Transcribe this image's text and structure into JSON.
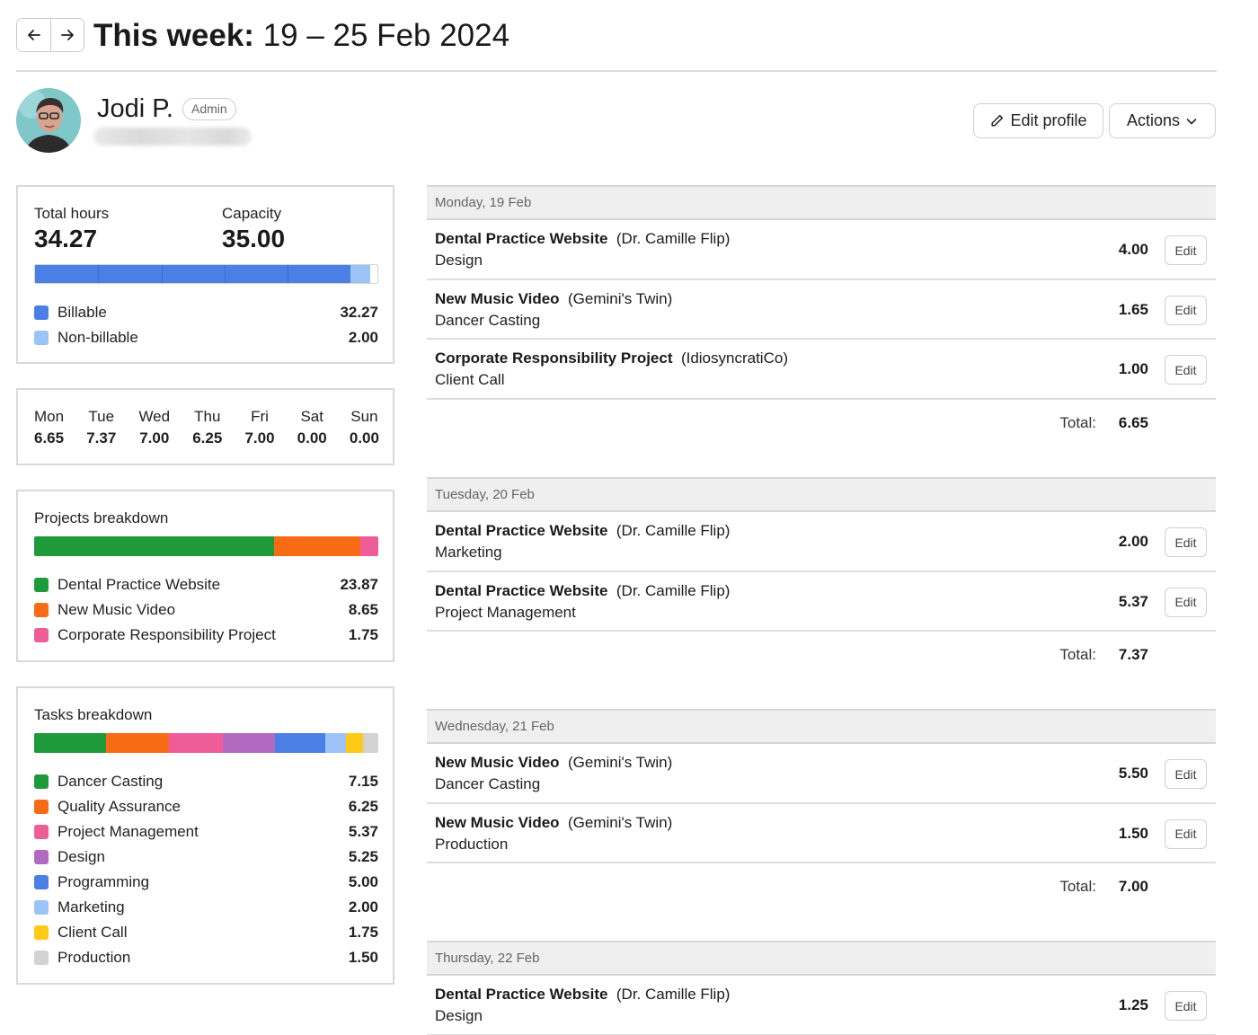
{
  "header": {
    "title_prefix": "This week:",
    "title_range": "19 – 25 Feb 2024",
    "prev_icon": "arrow-left-icon",
    "next_icon": "arrow-right-icon"
  },
  "user": {
    "name": "Jodi P.",
    "role": "Admin",
    "edit_profile_label": "Edit profile",
    "actions_label": "Actions"
  },
  "summary": {
    "total_hours_label": "Total hours",
    "total_hours": "34.27",
    "capacity_label": "Capacity",
    "capacity": "35.00",
    "billable_label": "Billable",
    "billable_value": "32.27",
    "billable_fraction": 0.922,
    "nonbillable_label": "Non-billable",
    "nonbillable_value": "2.00",
    "nonbillable_fraction": 0.057,
    "colors": {
      "billable": "#4a7fe6",
      "nonbillable": "#9cc3f6"
    }
  },
  "days": [
    {
      "name": "Mon",
      "value": "6.65"
    },
    {
      "name": "Tue",
      "value": "7.37"
    },
    {
      "name": "Wed",
      "value": "7.00"
    },
    {
      "name": "Thu",
      "value": "6.25"
    },
    {
      "name": "Fri",
      "value": "7.00"
    },
    {
      "name": "Sat",
      "value": "0.00"
    },
    {
      "name": "Sun",
      "value": "0.00"
    }
  ],
  "projects": {
    "title": "Projects breakdown",
    "items": [
      {
        "label": "Dental Practice Website",
        "value": "23.87",
        "color": "#1e9a3a"
      },
      {
        "label": "New Music Video",
        "value": "8.65",
        "color": "#f76b15"
      },
      {
        "label": "Corporate Responsibility Project",
        "value": "1.75",
        "color": "#ee5d98"
      }
    ]
  },
  "tasks": {
    "title": "Tasks breakdown",
    "items": [
      {
        "label": "Dancer Casting",
        "value": "7.15",
        "color": "#1e9a3a"
      },
      {
        "label": "Quality Assurance",
        "value": "6.25",
        "color": "#f76b15"
      },
      {
        "label": "Project Management",
        "value": "5.37",
        "color": "#ee5d98"
      },
      {
        "label": "Design",
        "value": "5.25",
        "color": "#b06bc0"
      },
      {
        "label": "Programming",
        "value": "5.00",
        "color": "#4a7fe6"
      },
      {
        "label": "Marketing",
        "value": "2.00",
        "color": "#9cc3f6"
      },
      {
        "label": "Client Call",
        "value": "1.75",
        "color": "#ffc917"
      },
      {
        "label": "Production",
        "value": "1.50",
        "color": "#d2d2d2"
      }
    ]
  },
  "timeline": {
    "total_label": "Total:",
    "edit_label": "Edit",
    "days": [
      {
        "header": "Monday, 19 Feb",
        "total": "6.65",
        "entries": [
          {
            "project": "Dental Practice Website",
            "client": "(Dr. Camille Flip)",
            "task": "Design",
            "hours": "4.00"
          },
          {
            "project": "New Music Video",
            "client": "(Gemini's Twin)",
            "task": "Dancer Casting",
            "hours": "1.65"
          },
          {
            "project": "Corporate Responsibility Project",
            "client": "(IdiosyncratiCo)",
            "task": "Client Call",
            "hours": "1.00"
          }
        ]
      },
      {
        "header": "Tuesday, 20 Feb",
        "total": "7.37",
        "entries": [
          {
            "project": "Dental Practice Website",
            "client": "(Dr. Camille Flip)",
            "task": "Marketing",
            "hours": "2.00"
          },
          {
            "project": "Dental Practice Website",
            "client": "(Dr. Camille Flip)",
            "task": "Project Management",
            "hours": "5.37"
          }
        ]
      },
      {
        "header": "Wednesday, 21 Feb",
        "total": "7.00",
        "entries": [
          {
            "project": "New Music Video",
            "client": "(Gemini's Twin)",
            "task": "Dancer Casting",
            "hours": "5.50"
          },
          {
            "project": "New Music Video",
            "client": "(Gemini's Twin)",
            "task": "Production",
            "hours": "1.50"
          }
        ]
      },
      {
        "header": "Thursday, 22 Feb",
        "entries": [
          {
            "project": "Dental Practice Website",
            "client": "(Dr. Camille Flip)",
            "task": "Design",
            "hours": "1.25"
          }
        ]
      }
    ]
  }
}
